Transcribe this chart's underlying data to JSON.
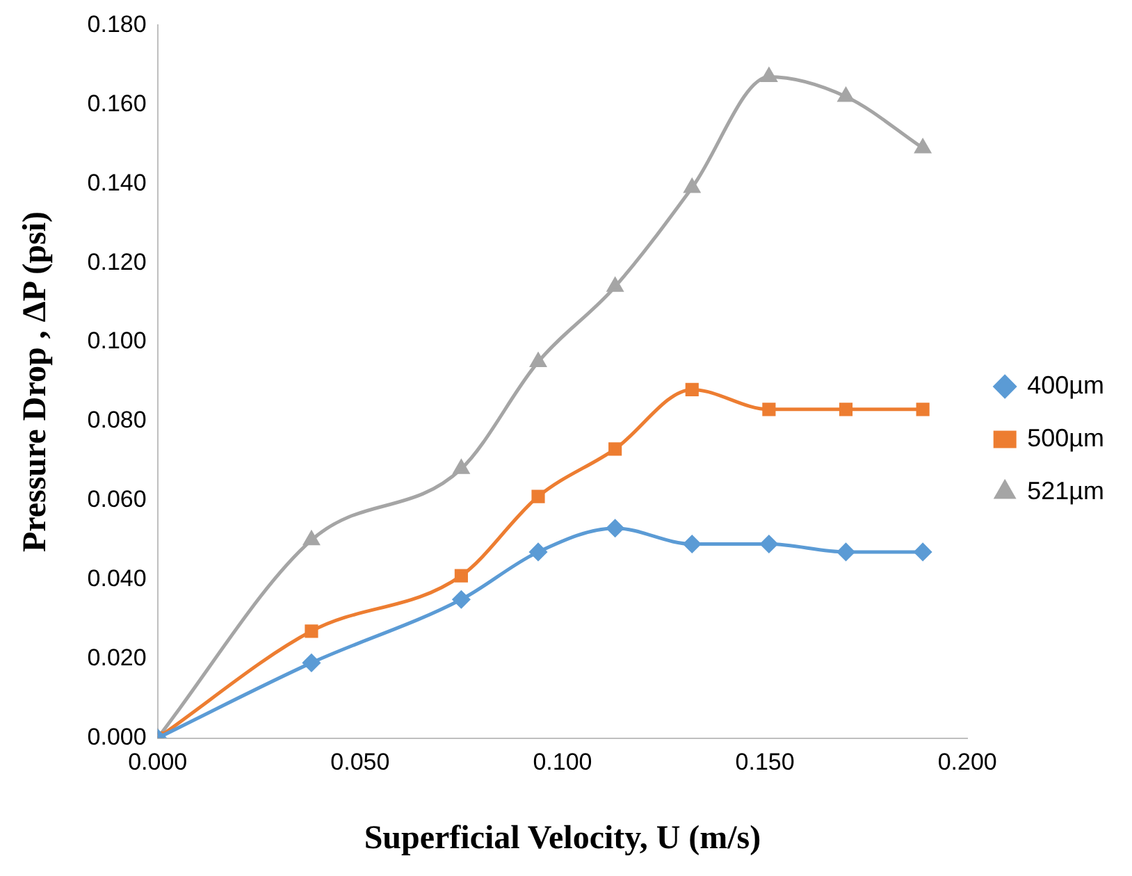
{
  "chart_data": {
    "type": "line",
    "xlabel": "Superficial Velocity, U (m/s)",
    "ylabel": "Pressure Drop , ΔP (psi)",
    "x": [
      0,
      0.038,
      0.075,
      0.094,
      0.113,
      0.132,
      0.151,
      0.17,
      0.189
    ],
    "series": [
      {
        "name": "400µm",
        "color": "#5b9bd5",
        "marker": "diamond",
        "values": [
          0,
          0.019,
          0.035,
          0.047,
          0.053,
          0.049,
          0.049,
          0.047,
          0.047
        ]
      },
      {
        "name": "500µm",
        "color": "#ed7d31",
        "marker": "square",
        "values": [
          0,
          0.027,
          0.041,
          0.061,
          0.073,
          0.088,
          0.083,
          0.083,
          0.083
        ]
      },
      {
        "name": "521µm",
        "color": "#a5a5a5",
        "marker": "triangle",
        "values": [
          0,
          0.05,
          0.068,
          0.095,
          0.114,
          0.139,
          0.167,
          0.162,
          0.149
        ]
      }
    ],
    "xlim": [
      0,
      0.2
    ],
    "xticks": [
      {
        "value": 0,
        "label": "0.000"
      },
      {
        "value": 0.05,
        "label": "0.050"
      },
      {
        "value": 0.1,
        "label": "0.100"
      },
      {
        "value": 0.15,
        "label": "0.150"
      },
      {
        "value": 0.2,
        "label": "0.200"
      }
    ],
    "ylim": [
      0,
      0.18
    ],
    "yticks": [
      {
        "value": 0,
        "label": "0.000"
      },
      {
        "value": 0.02,
        "label": "0.020"
      },
      {
        "value": 0.04,
        "label": "0.040"
      },
      {
        "value": 0.06,
        "label": "0.060"
      },
      {
        "value": 0.08,
        "label": "0.080"
      },
      {
        "value": 0.1,
        "label": "0.100"
      },
      {
        "value": 0.12,
        "label": "0.120"
      },
      {
        "value": 0.14,
        "label": "0.140"
      },
      {
        "value": 0.16,
        "label": "0.160"
      },
      {
        "value": 0.18,
        "label": "0.180"
      }
    ],
    "grid": false,
    "legend": "right",
    "line_style": "solid"
  }
}
